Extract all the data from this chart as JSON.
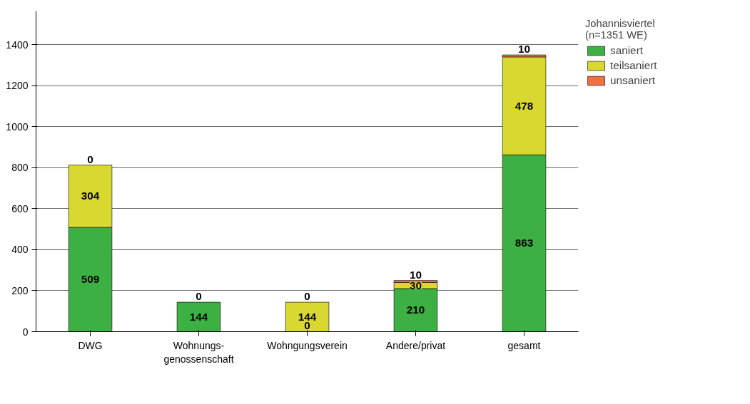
{
  "chart_data": {
    "type": "bar",
    "stacked": true,
    "categories": [
      "DWG",
      "Wohnungs-\ngenossenschaft",
      "Wohngungsverein",
      "Andere/privat",
      "gesamt"
    ],
    "series": [
      {
        "name": "saniert",
        "color": "#3cb043",
        "values": [
          509,
          144,
          0,
          210,
          863
        ],
        "value_labels": [
          "509",
          "144",
          "0",
          "210",
          "863"
        ]
      },
      {
        "name": "teilsaniert",
        "color": "#d8d830",
        "values": [
          304,
          0,
          144,
          30,
          478
        ],
        "value_labels": [
          "304",
          null,
          "144",
          "30",
          "478"
        ]
      },
      {
        "name": "unsaniert",
        "color": "#f07040",
        "values": [
          0,
          0,
          0,
          10,
          10
        ],
        "value_labels": [
          "0",
          "0",
          "0",
          "10",
          "10"
        ]
      }
    ],
    "legend_title": "Johannisviertel\n(n=1351 WE)",
    "ylim": [
      0,
      1565
    ],
    "yticks": [
      0,
      200,
      400,
      600,
      800,
      1000,
      1200,
      1400
    ],
    "grid": "y",
    "legend": "right"
  }
}
